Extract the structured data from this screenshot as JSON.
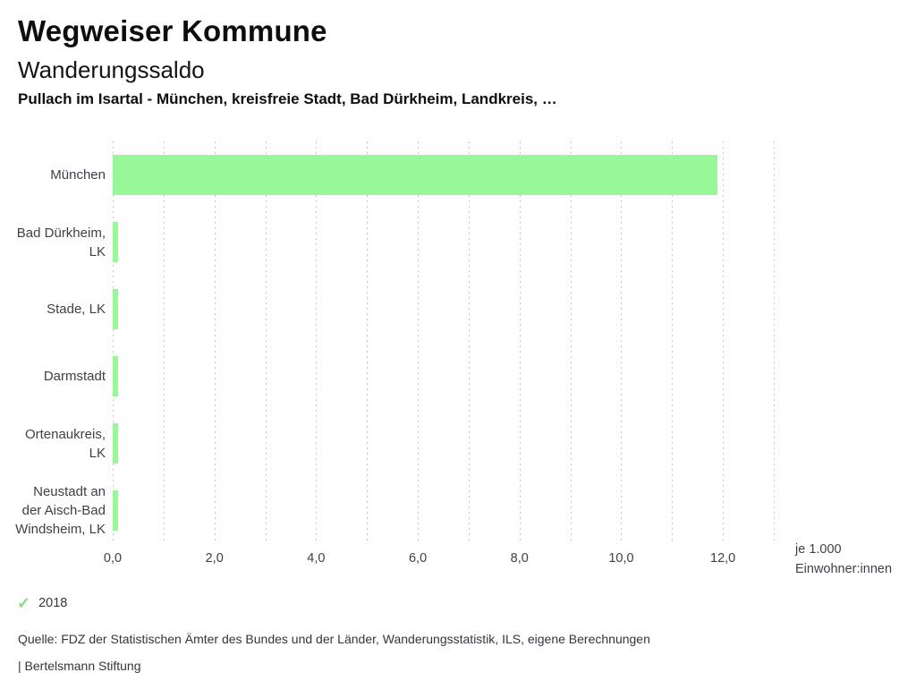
{
  "header": {
    "app_title": "Wegweiser Kommune",
    "chart_title": "Wanderungssaldo",
    "subtitle": "Pullach im Isartal - München, kreisfreie Stadt, Bad Dürkheim, Landkreis, …"
  },
  "chart_data": {
    "type": "bar",
    "orientation": "horizontal",
    "title": "Wanderungssaldo",
    "categories": [
      "München",
      "Bad Dürkheim, LK",
      "Stade, LK",
      "Darmstadt",
      "Ortenaukreis, LK",
      "Neustadt an der Aisch-Bad Windsheim, LK"
    ],
    "category_label_lines": [
      [
        "München"
      ],
      [
        "Bad Dürkheim,",
        "LK"
      ],
      [
        "Stade, LK"
      ],
      [
        "Darmstadt"
      ],
      [
        "Ortenaukreis,",
        "LK"
      ],
      [
        "Neustadt an",
        "der Aisch-Bad",
        "Windsheim, LK"
      ]
    ],
    "series": [
      {
        "name": "2018",
        "values": [
          11.9,
          0.1,
          0.1,
          0.1,
          0.1,
          0.1
        ]
      }
    ],
    "xlabel": "je 1.000 Einwohner:innen",
    "xlabel_lines": [
      "je 1.000",
      "Einwohner:innen"
    ],
    "xlim": [
      0,
      13
    ],
    "gridline_interval": 1,
    "grid": true,
    "xticks": [
      0,
      2,
      4,
      6,
      8,
      10,
      12
    ],
    "xtick_labels": [
      "0,0",
      "2,0",
      "4,0",
      "6,0",
      "8,0",
      "10,0",
      "12,0"
    ],
    "bar_color": "#98f798",
    "gridline_color": "#c6c6c6",
    "legend": {
      "position": "bottom-left",
      "entries": [
        {
          "label": "2018",
          "marker": "check-icon",
          "color": "#7fdc7f"
        }
      ]
    }
  },
  "footer": {
    "source": "Quelle: FDZ der Statistischen Ämter des Bundes und der Länder, Wanderungsstatistik, ILS, eigene Berechnungen",
    "attribution": "| Bertelsmann Stiftung"
  }
}
